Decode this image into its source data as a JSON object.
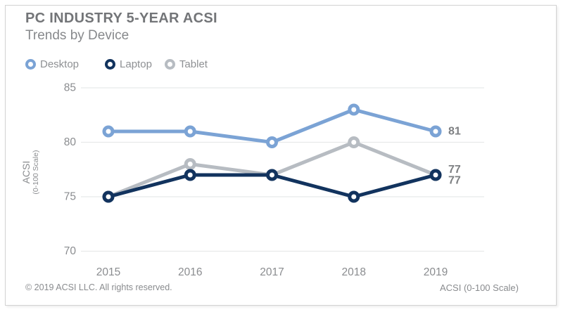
{
  "card": {
    "title": "PC INDUSTRY 5-YEAR ACSI",
    "subtitle": "Trends by Device",
    "footer_left": "© 2019 ACSI LLC. All rights reserved.",
    "footer_right": "ACSI (0-100 Scale)"
  },
  "colors": {
    "desktop": "#7ba3d5",
    "laptop": "#12335e",
    "tablet": "#b7bcc2",
    "gridline": "#e8e9ea",
    "tick_text": "#8a8c8f",
    "data_label": "#7e8083"
  },
  "chart_data": {
    "type": "line",
    "title": "PC INDUSTRY 5-YEAR ACSI",
    "subtitle": "Trends by Device",
    "x": [
      "2015",
      "2016",
      "2017",
      "2018",
      "2019"
    ],
    "series": [
      {
        "name": "Desktop",
        "color_key": "desktop",
        "values": [
          81,
          81,
          80,
          83,
          81
        ],
        "end_label": "81"
      },
      {
        "name": "Laptop",
        "color_key": "laptop",
        "values": [
          75,
          77,
          77,
          75,
          77
        ],
        "end_label": "77"
      },
      {
        "name": "Tablet",
        "color_key": "tablet",
        "values": [
          75,
          78,
          77,
          80,
          77
        ],
        "end_label": "77"
      }
    ],
    "yticks": [
      85,
      80,
      75,
      70
    ],
    "ylim": [
      70,
      85
    ],
    "ylabel_line1": "ACSI",
    "ylabel_line2": "(0-100 Scale)",
    "grid": true,
    "legend_position": "top-left",
    "marker_style": "open-circle"
  }
}
